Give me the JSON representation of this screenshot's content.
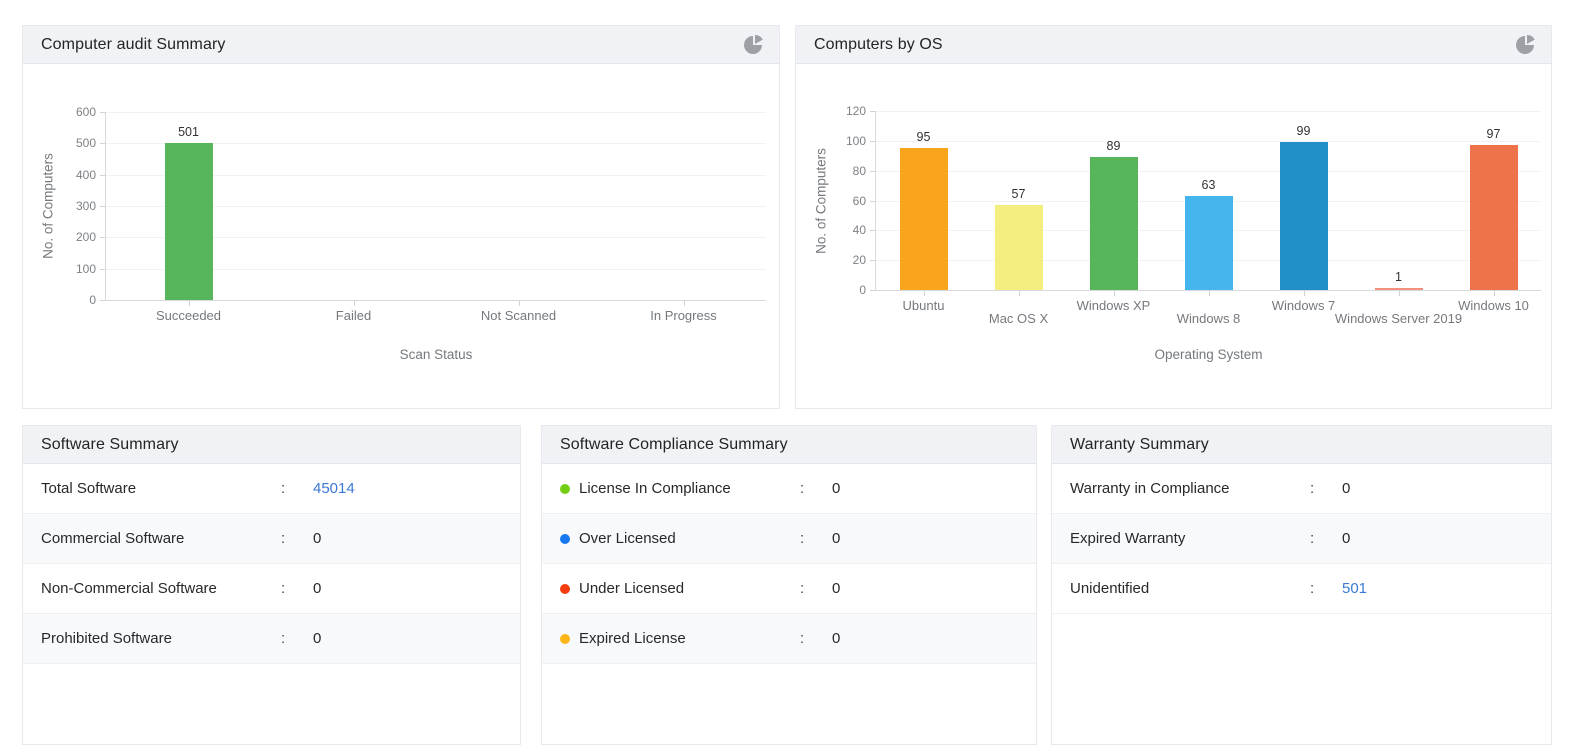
{
  "panels": {
    "computer_audit": {
      "title": "Computer audit Summary",
      "icon": "pie-chart-icon"
    },
    "computers_by_os": {
      "title": "Computers by OS",
      "icon": "pie-chart-icon"
    },
    "software_summary": {
      "title": "Software Summary",
      "separator": ":",
      "rows": [
        {
          "label": "Total Software",
          "value": "45014",
          "link": true
        },
        {
          "label": "Commercial Software",
          "value": "0",
          "link": false
        },
        {
          "label": "Non-Commercial Software",
          "value": "0",
          "link": false
        },
        {
          "label": "Prohibited Software",
          "value": "0",
          "link": false
        }
      ]
    },
    "software_compliance": {
      "title": "Software Compliance Summary",
      "separator": ":",
      "rows": [
        {
          "label": "License In Compliance",
          "value": "0",
          "link": false,
          "dot_color": "#72ce13"
        },
        {
          "label": "Over Licensed",
          "value": "0",
          "link": false,
          "dot_color": "#1778f2"
        },
        {
          "label": "Under Licensed",
          "value": "0",
          "link": false,
          "dot_color": "#f53d10"
        },
        {
          "label": "Expired License",
          "value": "0",
          "link": false,
          "dot_color": "#fdb417"
        }
      ]
    },
    "warranty_summary": {
      "title": "Warranty Summary",
      "separator": ":",
      "rows": [
        {
          "label": "Warranty in Compliance",
          "value": "0",
          "link": false
        },
        {
          "label": "Expired Warranty",
          "value": "0",
          "link": false
        },
        {
          "label": "Unidentified",
          "value": "501",
          "link": true
        }
      ]
    }
  },
  "chart_data": [
    {
      "type": "bar",
      "title": "Computer audit Summary",
      "categories": [
        "Succeeded",
        "Failed",
        "Not Scanned",
        "In Progress"
      ],
      "values": [
        501,
        0,
        0,
        0
      ],
      "bar_colors": [
        "#57b55c",
        "#57b55c",
        "#57b55c",
        "#57b55c"
      ],
      "xlabel": "Scan Status",
      "ylabel": "No. of Computers",
      "ylim": [
        0,
        600
      ],
      "ytick_step": 100,
      "grid": true,
      "stagger_labels": false,
      "legend": "none"
    },
    {
      "type": "bar",
      "title": "Computers by OS",
      "categories": [
        "Ubuntu",
        "Mac OS X",
        "Windows XP",
        "Windows 8",
        "Windows 7",
        "Windows Server 2019",
        "Windows 10"
      ],
      "values": [
        95,
        57,
        89,
        63,
        99,
        1,
        97
      ],
      "bar_colors": [
        "#f9a51b",
        "#f3ee7e",
        "#57b55c",
        "#45b6ed",
        "#2090c8",
        "#f5907e",
        "#ee734b"
      ],
      "xlabel": "Operating System",
      "ylabel": "No. of Computers",
      "ylim": [
        0,
        120
      ],
      "ytick_step": 20,
      "grid": true,
      "stagger_labels": true,
      "legend": "none"
    }
  ]
}
